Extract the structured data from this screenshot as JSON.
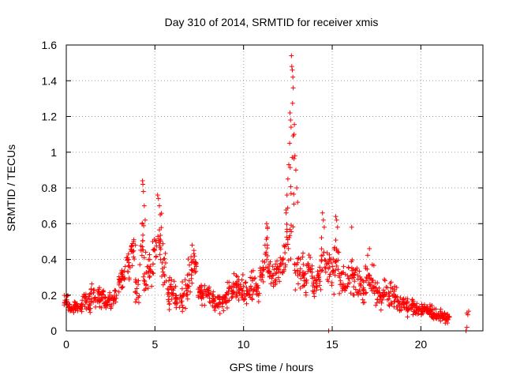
{
  "chart_data": {
    "type": "scatter",
    "title": "Day 310 of 2014, SRMTID for receiver xmis",
    "xlabel": "GPS time / hours",
    "ylabel": "SRMTID / TECUs",
    "xlim": [
      0,
      23.5
    ],
    "ylim": [
      0,
      1.6
    ],
    "grid": true,
    "marker": "+",
    "marker_color": "#ff0000",
    "xticks": [
      0,
      5,
      10,
      15,
      20
    ],
    "xtick_labels": [
      "0",
      "5",
      "10",
      "15",
      "20"
    ],
    "yticks": [
      0,
      0.2,
      0.4,
      0.6,
      0.8,
      1,
      1.2,
      1.4,
      1.6
    ],
    "ytick_labels": [
      "0",
      "0.2",
      "0.4",
      "0.6",
      "0.8",
      "1",
      "1.2",
      "1.4",
      "1.6"
    ],
    "series": [
      {
        "name": "xmis",
        "envelope": [
          [
            0.0,
            0.16,
            0.04
          ],
          [
            0.25,
            0.13,
            0.03
          ],
          [
            0.5,
            0.13,
            0.03
          ],
          [
            0.75,
            0.14,
            0.03
          ],
          [
            1.0,
            0.17,
            0.04
          ],
          [
            1.25,
            0.16,
            0.05
          ],
          [
            1.5,
            0.19,
            0.06
          ],
          [
            1.75,
            0.22,
            0.06
          ],
          [
            2.0,
            0.19,
            0.05
          ],
          [
            2.25,
            0.16,
            0.04
          ],
          [
            2.5,
            0.17,
            0.04
          ],
          [
            2.75,
            0.2,
            0.05
          ],
          [
            3.0,
            0.27,
            0.05
          ],
          [
            3.25,
            0.3,
            0.05
          ],
          [
            3.5,
            0.37,
            0.07
          ],
          [
            3.75,
            0.43,
            0.08
          ],
          [
            4.0,
            0.24,
            0.07
          ],
          [
            4.25,
            0.45,
            0.17
          ],
          [
            4.5,
            0.3,
            0.1
          ],
          [
            4.75,
            0.35,
            0.1
          ],
          [
            5.0,
            0.45,
            0.12
          ],
          [
            5.25,
            0.5,
            0.13
          ],
          [
            5.5,
            0.34,
            0.1
          ],
          [
            5.75,
            0.2,
            0.08
          ],
          [
            6.0,
            0.22,
            0.08
          ],
          [
            6.25,
            0.17,
            0.07
          ],
          [
            6.5,
            0.18,
            0.07
          ],
          [
            6.75,
            0.23,
            0.08
          ],
          [
            7.0,
            0.35,
            0.1
          ],
          [
            7.25,
            0.38,
            0.06
          ],
          [
            7.5,
            0.22,
            0.06
          ],
          [
            7.75,
            0.2,
            0.05
          ],
          [
            8.0,
            0.2,
            0.05
          ],
          [
            8.25,
            0.18,
            0.04
          ],
          [
            8.5,
            0.17,
            0.05
          ],
          [
            8.75,
            0.16,
            0.06
          ],
          [
            9.0,
            0.2,
            0.07
          ],
          [
            9.25,
            0.22,
            0.07
          ],
          [
            9.5,
            0.24,
            0.07
          ],
          [
            9.75,
            0.22,
            0.07
          ],
          [
            10.0,
            0.24,
            0.08
          ],
          [
            10.25,
            0.22,
            0.07
          ],
          [
            10.5,
            0.25,
            0.08
          ],
          [
            10.75,
            0.24,
            0.07
          ],
          [
            11.0,
            0.32,
            0.09
          ],
          [
            11.25,
            0.45,
            0.11
          ],
          [
            11.5,
            0.34,
            0.08
          ],
          [
            11.75,
            0.3,
            0.07
          ],
          [
            12.0,
            0.33,
            0.07
          ],
          [
            12.25,
            0.4,
            0.12
          ],
          [
            12.5,
            0.6,
            0.25
          ],
          [
            12.75,
            0.9,
            0.45
          ],
          [
            13.0,
            0.34,
            0.1
          ],
          [
            13.25,
            0.32,
            0.09
          ],
          [
            13.5,
            0.3,
            0.08
          ],
          [
            13.75,
            0.34,
            0.09
          ],
          [
            14.0,
            0.26,
            0.08
          ],
          [
            14.25,
            0.3,
            0.09
          ],
          [
            14.5,
            0.42,
            0.1
          ],
          [
            14.75,
            0.35,
            0.1
          ],
          [
            15.0,
            0.36,
            0.12
          ],
          [
            15.25,
            0.42,
            0.12
          ],
          [
            15.5,
            0.28,
            0.09
          ],
          [
            15.75,
            0.3,
            0.09
          ],
          [
            16.0,
            0.32,
            0.09
          ],
          [
            16.25,
            0.3,
            0.1
          ],
          [
            16.5,
            0.27,
            0.08
          ],
          [
            16.75,
            0.22,
            0.08
          ],
          [
            17.0,
            0.3,
            0.09
          ],
          [
            17.25,
            0.27,
            0.08
          ],
          [
            17.5,
            0.22,
            0.08
          ],
          [
            17.75,
            0.2,
            0.07
          ],
          [
            18.0,
            0.22,
            0.07
          ],
          [
            18.25,
            0.2,
            0.07
          ],
          [
            18.5,
            0.19,
            0.06
          ],
          [
            18.75,
            0.16,
            0.06
          ],
          [
            19.0,
            0.15,
            0.05
          ],
          [
            19.25,
            0.13,
            0.04
          ],
          [
            19.5,
            0.14,
            0.04
          ],
          [
            19.75,
            0.13,
            0.04
          ],
          [
            20.0,
            0.12,
            0.04
          ],
          [
            20.25,
            0.12,
            0.04
          ],
          [
            20.5,
            0.11,
            0.04
          ],
          [
            20.75,
            0.1,
            0.03
          ],
          [
            21.0,
            0.09,
            0.03
          ],
          [
            21.25,
            0.08,
            0.02
          ],
          [
            21.5,
            0.07,
            0.02
          ]
        ],
        "spikes": [
          [
            4.3,
            0.84
          ],
          [
            4.32,
            0.82
          ],
          [
            4.35,
            0.78
          ],
          [
            4.4,
            0.7
          ],
          [
            4.45,
            0.62
          ],
          [
            5.15,
            0.76
          ],
          [
            5.2,
            0.74
          ],
          [
            5.25,
            0.7
          ],
          [
            5.3,
            0.65
          ],
          [
            3.8,
            0.5
          ],
          [
            3.9,
            0.48
          ],
          [
            7.1,
            0.48
          ],
          [
            7.2,
            0.45
          ],
          [
            12.7,
            1.54
          ],
          [
            12.72,
            1.48
          ],
          [
            12.75,
            1.46
          ],
          [
            12.78,
            1.42
          ],
          [
            12.8,
            1.36
          ],
          [
            12.62,
            1.22
          ],
          [
            12.65,
            1.18
          ],
          [
            12.68,
            1.14
          ],
          [
            12.85,
            1.1
          ],
          [
            12.9,
            0.98
          ],
          [
            12.95,
            0.9
          ],
          [
            12.6,
            1.05
          ],
          [
            12.55,
            0.93
          ],
          [
            12.5,
            0.85
          ],
          [
            12.45,
            0.76
          ],
          [
            13.0,
            0.8
          ],
          [
            13.05,
            0.72
          ],
          [
            12.4,
            0.66
          ],
          [
            11.3,
            0.6
          ],
          [
            11.35,
            0.58
          ],
          [
            14.45,
            0.66
          ],
          [
            14.5,
            0.62
          ],
          [
            14.55,
            0.58
          ],
          [
            15.2,
            0.64
          ],
          [
            15.25,
            0.62
          ],
          [
            15.3,
            0.58
          ],
          [
            16.1,
            0.58
          ],
          [
            17.1,
            0.46
          ],
          [
            14.8,
            0.0
          ],
          [
            22.6,
            0.1
          ],
          [
            22.65,
            0.09
          ],
          [
            22.7,
            0.11
          ],
          [
            22.55,
            0.0
          ],
          [
            22.6,
            0.02
          ]
        ]
      }
    ]
  }
}
